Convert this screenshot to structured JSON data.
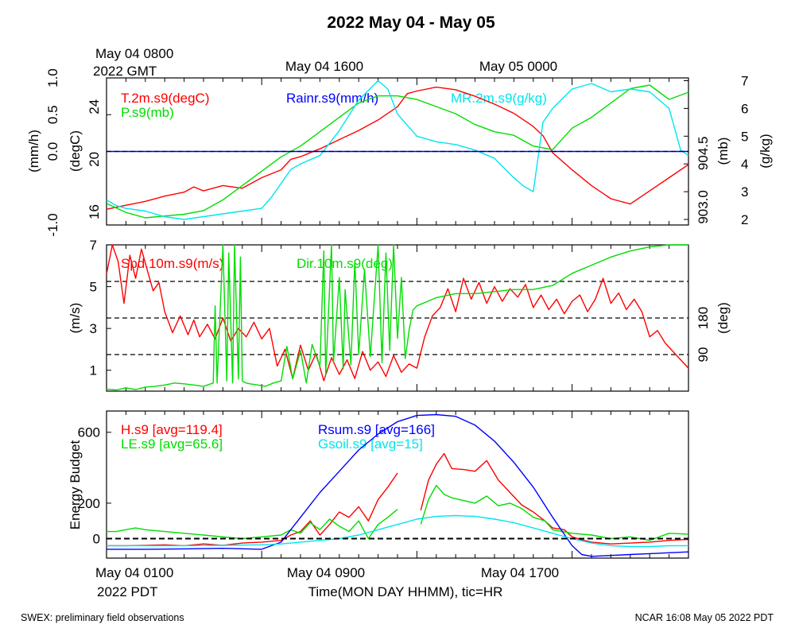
{
  "title": "2022 May 04 - May 05",
  "footer_left": "SWEX: preliminary field observations",
  "footer_right": "NCAR 16:08 May 05 2022 PDT",
  "top_axis": {
    "first_line1": "May 04 0800",
    "first_line2": "2022 GMT",
    "labels": [
      "May 04 1600",
      "May 05 0000"
    ]
  },
  "bottom_axis": {
    "first_line1": "May 04 0100",
    "first_line2": "2022 PDT",
    "labels": [
      "May 04 0900",
      "May 04 1700"
    ],
    "xlabel": "Time(MON DAY HHMM), tic=HR"
  },
  "colors": {
    "red": "#ff0000",
    "green": "#00dd00",
    "blue": "#0000ff",
    "cyan": "#00e5ee",
    "black": "#000000"
  },
  "chart_data": [
    {
      "type": "line",
      "x_unit": "hours since May 04 0100 PDT",
      "xlim": [
        0,
        30
      ],
      "axes": {
        "rain": {
          "label": "(mm/h)",
          "ticks": [
            "-1.0",
            "0.0",
            "0.5",
            "1.0"
          ],
          "lim": [
            -1,
            1
          ]
        },
        "temp": {
          "label": "(degC)",
          "ticks": [
            "16",
            "20",
            "24"
          ],
          "lim": [
            15,
            26.2
          ]
        },
        "pres": {
          "label": "(mb)",
          "ticks": [
            "903.0",
            "904.5"
          ],
          "lim": [
            902.5,
            906.6
          ]
        },
        "mr": {
          "label": "(g/kg)",
          "ticks": [
            "2",
            "3",
            "4",
            "5",
            "6",
            "7"
          ],
          "lim": [
            1.8,
            7.1
          ]
        }
      },
      "series": [
        {
          "name": "T.2m.s9(degC)",
          "axis": "temp",
          "color": "red",
          "x": [
            0,
            1,
            2,
            3,
            4,
            4.5,
            5,
            6,
            7,
            8,
            9,
            9.5,
            10,
            11,
            12,
            13,
            14,
            15,
            15.5,
            16,
            17,
            18,
            19,
            20,
            21,
            22,
            22.5,
            23,
            24,
            25,
            26,
            27,
            28,
            29,
            30
          ],
          "y": [
            16.2,
            16.5,
            16.8,
            17.2,
            17.5,
            17.9,
            17.6,
            18,
            17.8,
            18.6,
            19.2,
            20,
            20.2,
            20.8,
            21.5,
            22.2,
            23,
            24,
            25,
            25.2,
            25.5,
            25.3,
            24.8,
            24.2,
            23.5,
            22.5,
            21.8,
            20.5,
            19.2,
            18,
            17,
            16.6,
            17.6,
            18.6,
            19.6
          ]
        },
        {
          "name": "P.s9(mb)",
          "axis": "pres",
          "color": "green",
          "x": [
            0,
            1,
            2,
            3,
            4,
            5,
            6,
            7,
            8,
            9,
            10,
            11,
            12,
            13,
            14,
            15,
            16,
            17,
            18,
            19,
            20,
            21,
            22,
            23,
            23.5,
            24,
            25,
            26,
            27,
            28,
            28.5,
            29,
            30
          ],
          "y": [
            903.1,
            902.85,
            902.7,
            902.75,
            902.8,
            902.9,
            903.2,
            903.6,
            904.0,
            904.4,
            904.7,
            905.1,
            905.5,
            905.9,
            906.1,
            906.1,
            906.0,
            905.8,
            905.6,
            905.3,
            905.1,
            905.0,
            904.7,
            904.6,
            904.9,
            905.2,
            905.5,
            905.9,
            906.3,
            906.4,
            906.2,
            906.0,
            906.2
          ]
        },
        {
          "name": "MR.2m.s9(g/kg)",
          "axis": "mr",
          "color": "cyan",
          "x": [
            0,
            0.5,
            1,
            2,
            3,
            4,
            5,
            6,
            7,
            8,
            8.5,
            9,
            9.5,
            10,
            11,
            12,
            13,
            14,
            14.5,
            15,
            16,
            17,
            18,
            19,
            20,
            21,
            21.5,
            22,
            22.5,
            23,
            24,
            25,
            26,
            27,
            28,
            29,
            29.6,
            30
          ],
          "y": [
            2.7,
            2.5,
            2.4,
            2.3,
            2.1,
            2.0,
            2.1,
            2.2,
            2.3,
            2.4,
            2.8,
            3.3,
            3.8,
            4.0,
            4.3,
            5.2,
            6.3,
            7.0,
            6.7,
            5.8,
            5.0,
            4.8,
            4.7,
            4.5,
            4.2,
            3.5,
            3.2,
            3.0,
            5.5,
            6.0,
            6.7,
            6.9,
            6.6,
            6.7,
            6.6,
            6.0,
            4.5,
            4.3
          ]
        },
        {
          "name": "Rainr.s9(mm/h)",
          "axis": "rain",
          "color": "blue",
          "x": [
            0,
            30
          ],
          "y": [
            0,
            0
          ]
        }
      ],
      "hlines": [
        {
          "axis": "rain",
          "y": 0,
          "style": "dashed"
        }
      ]
    },
    {
      "type": "line",
      "x_unit": "hours since May 04 0100 PDT",
      "xlim": [
        0,
        30
      ],
      "axes": {
        "speed": {
          "label": "(m/s)",
          "ticks": [
            "1",
            "3",
            "5",
            "7"
          ],
          "lim": [
            0,
            7
          ]
        },
        "dir": {
          "label": "(deg)",
          "ticks": [
            "90",
            "180"
          ],
          "lim": [
            0,
            360
          ]
        }
      },
      "series": [
        {
          "name": "Spd.10m.s9(m/s)",
          "axis": "speed",
          "color": "red",
          "x": [
            0,
            0.3,
            0.6,
            0.9,
            1.2,
            1.5,
            1.8,
            2.1,
            2.4,
            2.7,
            3,
            3.4,
            3.8,
            4.2,
            4.5,
            4.8,
            5.2,
            5.6,
            6,
            6.4,
            6.8,
            7.2,
            7.6,
            8,
            8.4,
            8.8,
            9.2,
            9.6,
            10,
            10.4,
            10.8,
            11.2,
            11.6,
            12,
            12.4,
            12.8,
            13.2,
            13.6,
            14,
            14.4,
            14.8,
            15.2,
            15.6,
            16,
            16.4,
            16.8,
            17.2,
            17.6,
            18,
            18.4,
            18.8,
            19.2,
            19.6,
            20,
            20.4,
            20.8,
            21.2,
            21.6,
            22,
            22.4,
            22.8,
            23.2,
            23.6,
            24,
            24.4,
            24.8,
            25.2,
            25.6,
            26,
            26.4,
            26.8,
            27.2,
            27.6,
            28,
            28.4,
            28.8,
            29.2,
            29.6,
            30
          ],
          "y": [
            5.6,
            7,
            6.2,
            4.2,
            6.5,
            5.4,
            6.8,
            5.8,
            4.8,
            5.2,
            3.8,
            2.8,
            3.6,
            2.7,
            3.4,
            2.6,
            3.2,
            2.5,
            3.5,
            2.4,
            3.0,
            2.6,
            3.3,
            2.5,
            3.0,
            1.2,
            2.0,
            0.6,
            2.2,
            1.0,
            1.8,
            0.5,
            1.6,
            0.8,
            1.5,
            0.6,
            1.9,
            1.0,
            1.4,
            0.7,
            1.7,
            0.9,
            1.3,
            1.1,
            2.6,
            3.6,
            4.0,
            4.9,
            3.8,
            5.4,
            4.4,
            5.2,
            4.2,
            5.0,
            4.3,
            4.9,
            4.5,
            5.1,
            4.0,
            4.6,
            3.9,
            4.4,
            3.7,
            4.3,
            4.6,
            3.8,
            4.4,
            5.4,
            4.2,
            4.7,
            3.9,
            4.4,
            3.8,
            2.6,
            2.9,
            2.3,
            1.9,
            1.5,
            1.1
          ]
        },
        {
          "name": "Dir.10m.s9(deg)",
          "axis": "dir",
          "color": "green",
          "x": [
            0,
            0.5,
            1,
            1.5,
            2,
            2.5,
            3,
            3.5,
            4,
            4.5,
            5,
            5.5,
            5.6,
            5.7,
            6,
            6.2,
            6.3,
            6.5,
            6.6,
            6.8,
            6.9,
            7.0,
            7.2,
            7.4,
            7.8,
            8.2,
            8.6,
            9,
            9.3,
            9.6,
            10,
            10.3,
            10.6,
            11,
            11.2,
            11.3,
            11.6,
            11.7,
            12,
            12.2,
            12.3,
            12.6,
            12.8,
            13,
            13.3,
            13.6,
            14,
            14.2,
            14.4,
            14.6,
            14.8,
            15,
            15.2,
            15.4,
            15.6,
            15.8,
            16,
            16.5,
            17,
            18,
            19,
            20,
            21,
            22,
            23,
            24,
            25,
            26,
            27,
            28,
            29,
            30
          ],
          "y": [
            5,
            3,
            8,
            4,
            10,
            12,
            15,
            20,
            18,
            15,
            12,
            20,
            210,
            20,
            360,
            25,
            340,
            20,
            360,
            30,
            330,
            25,
            20,
            18,
            15,
            12,
            20,
            25,
            110,
            30,
            100,
            20,
            115,
            60,
            345,
            40,
            360,
            70,
            280,
            55,
            250,
            65,
            320,
            90,
            300,
            85,
            360,
            70,
            340,
            100,
            360,
            130,
            280,
            80,
            150,
            200,
            210,
            220,
            230,
            240,
            240,
            245,
            250,
            250,
            260,
            290,
            310,
            330,
            345,
            355,
            365,
            368
          ]
        }
      ],
      "hlines": [
        {
          "axis": "dir",
          "y": 90,
          "style": "dashed"
        },
        {
          "axis": "dir",
          "y": 180,
          "style": "dashed"
        },
        {
          "axis": "dir",
          "y": 270,
          "style": "dashed"
        }
      ]
    },
    {
      "type": "line",
      "x_unit": "hours since May 04 0100 PDT",
      "xlim": [
        0,
        30
      ],
      "ylabel": "Energy Budget",
      "y_ticks": [
        "0",
        "200",
        "600"
      ],
      "ylim": [
        -110,
        720
      ],
      "series": [
        {
          "name": "H.s9 [avg=119.4]",
          "color": "red",
          "segments": [
            {
              "x": [
                0,
                1,
                2,
                3,
                4,
                5,
                6,
                7,
                8,
                9,
                9.5,
                10,
                10.5,
                11,
                11.5,
                12,
                12.5,
                13,
                13.5,
                14,
                14.5,
                15
              ],
              "y": [
                -40,
                -40,
                -38,
                -35,
                -40,
                -30,
                -38,
                -25,
                -20,
                -10,
                20,
                40,
                100,
                20,
                80,
                150,
                120,
                180,
                100,
                220,
                290,
                370
              ]
            },
            {
              "x": [
                16.2,
                16.6,
                17,
                17.4,
                17.8,
                18.4,
                19,
                19.6,
                20.2,
                20.8,
                21.4,
                22,
                22.6,
                23,
                23.6,
                24,
                24.6,
                25,
                26,
                27,
                28,
                29,
                30
              ],
              "y": [
                160,
                330,
                420,
                480,
                395,
                390,
                380,
                440,
                330,
                260,
                190,
                150,
                100,
                60,
                50,
                10,
                -10,
                -20,
                -30,
                -25,
                -20,
                -10,
                -5
              ]
            }
          ]
        },
        {
          "name": "LE.s9 [avg=65.6]",
          "color": "green",
          "segments": [
            {
              "x": [
                0,
                0.5,
                1,
                1.5,
                2,
                3,
                4,
                5,
                6,
                7,
                8,
                9,
                9.5,
                10,
                10.5,
                11,
                11.5,
                12,
                12.5,
                13,
                13.5,
                14,
                14.5,
                15
              ],
              "y": [
                40,
                40,
                50,
                60,
                50,
                40,
                30,
                20,
                10,
                0,
                10,
                20,
                50,
                30,
                90,
                50,
                110,
                70,
                40,
                100,
                0,
                80,
                120,
                165
              ]
            },
            {
              "x": [
                16.2,
                16.6,
                17,
                17.4,
                17.8,
                18.4,
                19,
                19.6,
                20.2,
                20.8,
                21.4,
                22,
                22.6,
                23,
                24,
                25,
                26,
                27,
                28,
                29,
                30
              ],
              "y": [
                80,
                220,
                300,
                250,
                230,
                215,
                200,
                240,
                185,
                200,
                170,
                120,
                100,
                50,
                30,
                20,
                0,
                10,
                -10,
                30,
                25
              ]
            }
          ]
        },
        {
          "name": "Rsum.s9 [avg=166]",
          "color": "blue",
          "segments": [
            {
              "x": [
                0,
                2,
                4,
                6,
                8,
                9,
                10,
                11,
                12,
                13,
                14,
                15,
                16,
                17,
                18,
                19,
                20,
                21,
                22,
                23,
                23.5,
                24,
                24.5,
                25,
                26,
                27,
                28,
                29,
                30
              ],
              "y": [
                -60,
                -60,
                -58,
                -55,
                -60,
                -20,
                120,
                260,
                380,
                500,
                590,
                660,
                695,
                700,
                690,
                640,
                550,
                430,
                290,
                120,
                40,
                -40,
                -90,
                -100,
                -95,
                -90,
                -85,
                -80,
                -75
              ]
            }
          ]
        },
        {
          "name": "Gsoil.s9 [avg=15]",
          "color": "cyan",
          "segments": [
            {
              "x": [
                0,
                2,
                4,
                6,
                8,
                9,
                10,
                11,
                12,
                13,
                14,
                15,
                16,
                17,
                18,
                19,
                20,
                21,
                22,
                23,
                24,
                25,
                26,
                27,
                28,
                29,
                30
              ],
              "y": [
                -40,
                -40,
                -40,
                -38,
                -35,
                -30,
                -20,
                -10,
                0,
                20,
                50,
                80,
                110,
                125,
                130,
                125,
                110,
                90,
                60,
                30,
                0,
                -25,
                -40,
                -45,
                -45,
                -40,
                -40
              ]
            }
          ]
        }
      ],
      "hlines": [
        {
          "y": 0,
          "style": "dashed"
        }
      ]
    }
  ]
}
